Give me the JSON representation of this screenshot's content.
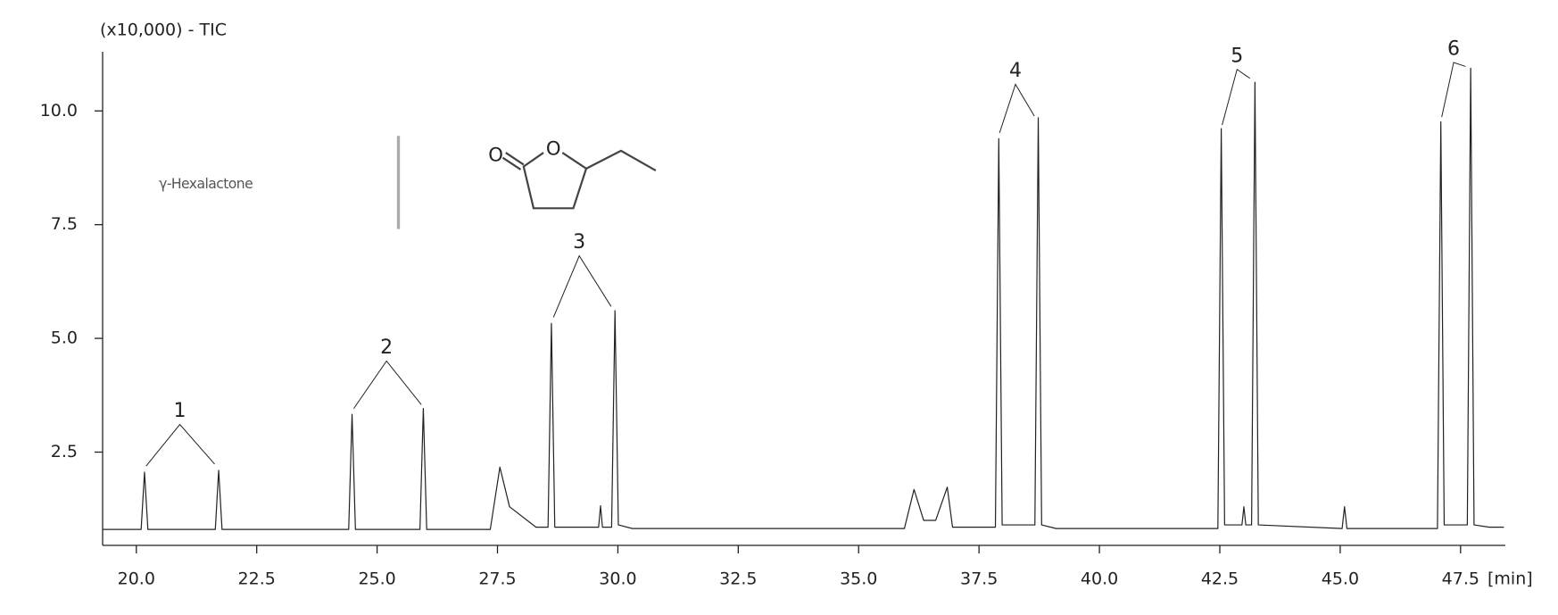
{
  "chart_data": {
    "type": "line",
    "y_axis_label": "(x10,000) - TIC",
    "x_axis_label": "[min]",
    "x": [
      19.3,
      20.1,
      20.17,
      20.24,
      21.64,
      21.71,
      21.78,
      24.41,
      24.48,
      24.55,
      25.89,
      25.96,
      26.03,
      27.35,
      27.55,
      27.75,
      28.3,
      28.55,
      28.62,
      28.69,
      29.6,
      29.64,
      29.68,
      29.87,
      29.94,
      30.01,
      30.3,
      35.95,
      36.15,
      36.35,
      36.6,
      36.84,
      36.95,
      37.84,
      37.91,
      37.98,
      38.66,
      38.73,
      38.8,
      39.1,
      42.46,
      42.53,
      42.6,
      42.96,
      43.0,
      43.04,
      43.16,
      43.23,
      43.3,
      45.04,
      45.09,
      45.14,
      47.02,
      47.09,
      47.16,
      47.64,
      47.71,
      47.78,
      48.1,
      48.4
    ],
    "series": [
      {
        "color": "#222222",
        "values": [
          0.8,
          0.8,
          2.06,
          0.8,
          0.8,
          2.1,
          0.8,
          0.8,
          3.33,
          0.8,
          0.8,
          3.46,
          0.8,
          0.8,
          2.17,
          1.3,
          0.85,
          0.85,
          5.33,
          0.85,
          0.85,
          1.32,
          0.85,
          0.85,
          5.61,
          0.9,
          0.82,
          0.82,
          1.68,
          1.0,
          1.0,
          1.73,
          0.85,
          0.85,
          9.39,
          0.9,
          0.9,
          9.85,
          0.9,
          0.82,
          0.82,
          9.61,
          0.9,
          0.9,
          1.3,
          0.9,
          0.9,
          10.63,
          0.9,
          0.82,
          1.3,
          0.82,
          0.82,
          9.76,
          0.9,
          0.9,
          10.94,
          0.9,
          0.85,
          0.85
        ]
      }
    ],
    "xlim": [
      19.3,
      48.43
    ],
    "ylim": [
      0.45,
      11.3
    ],
    "xticks": [
      {
        "value": 20,
        "label": "20.0"
      },
      22.5,
      {
        "value": 25,
        "label": "25.0"
      },
      27.5,
      {
        "value": 30,
        "label": "30.0"
      },
      32.5,
      {
        "value": 35,
        "label": "35.0"
      },
      37.5,
      {
        "value": 40,
        "label": "40.0"
      },
      42.5,
      {
        "value": 45,
        "label": "45.0"
      },
      47.5
    ],
    "yticks": [
      2.5,
      {
        "value": 5,
        "label": "5.0"
      },
      7.5,
      {
        "value": 10,
        "label": "10.0"
      }
    ],
    "annotations": [
      "1",
      "2",
      "3",
      "4",
      "5",
      "6"
    ],
    "inset": {
      "label": "γ-Hexalactone",
      "atoms": [
        "O",
        "O"
      ]
    }
  }
}
